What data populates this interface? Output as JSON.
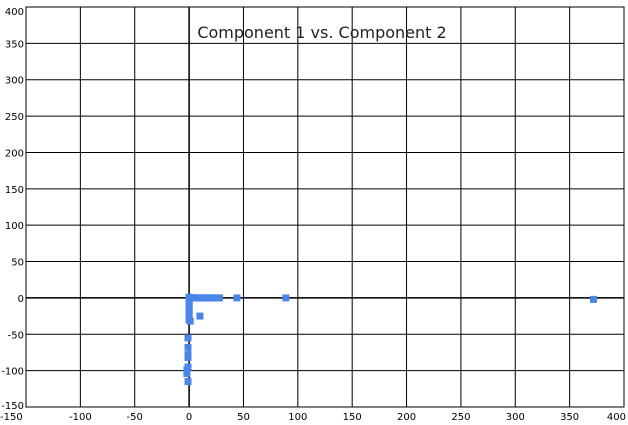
{
  "chart_data": {
    "type": "scatter",
    "title": "Component 1 vs. Component 2",
    "xlabel": "",
    "ylabel": "",
    "xlim": [
      -150,
      400
    ],
    "ylim": [
      -150,
      400
    ],
    "x_ticks": [
      -150,
      -100,
      -50,
      0,
      50,
      100,
      150,
      200,
      250,
      300,
      350,
      400
    ],
    "y_ticks": [
      -150,
      -100,
      -50,
      0,
      50,
      100,
      150,
      200,
      250,
      300,
      350,
      400
    ],
    "grid": true,
    "legend": "none",
    "marker_color": "#4a86e8",
    "series": [
      {
        "points": [
          [
            0,
            0
          ],
          [
            1,
            0
          ],
          [
            2,
            0
          ],
          [
            3,
            0
          ],
          [
            4,
            0
          ],
          [
            5,
            0
          ],
          [
            6,
            0
          ],
          [
            7,
            0
          ],
          [
            8,
            0
          ],
          [
            10,
            0
          ],
          [
            12,
            0
          ],
          [
            14,
            0
          ],
          [
            16,
            0
          ],
          [
            18,
            0
          ],
          [
            20,
            0
          ],
          [
            22,
            0
          ],
          [
            24,
            0
          ],
          [
            26,
            0
          ],
          [
            28,
            0
          ],
          [
            44,
            0
          ],
          [
            89,
            0
          ],
          [
            372,
            -2
          ],
          [
            0,
            1
          ],
          [
            0,
            -2
          ],
          [
            0,
            -5
          ],
          [
            0,
            -8
          ],
          [
            0,
            -11
          ],
          [
            0,
            -14
          ],
          [
            0,
            -17
          ],
          [
            0,
            -20
          ],
          [
            0,
            -23
          ],
          [
            0,
            -26
          ],
          [
            0,
            -30
          ],
          [
            1,
            -32
          ],
          [
            10,
            -25
          ],
          [
            -1,
            -55
          ],
          [
            -1,
            -68
          ],
          [
            -1,
            -78
          ],
          [
            -1,
            -82
          ],
          [
            -1,
            -95
          ],
          [
            -2,
            -99
          ],
          [
            -2,
            -104
          ],
          [
            -1,
            -115
          ]
        ]
      }
    ]
  }
}
